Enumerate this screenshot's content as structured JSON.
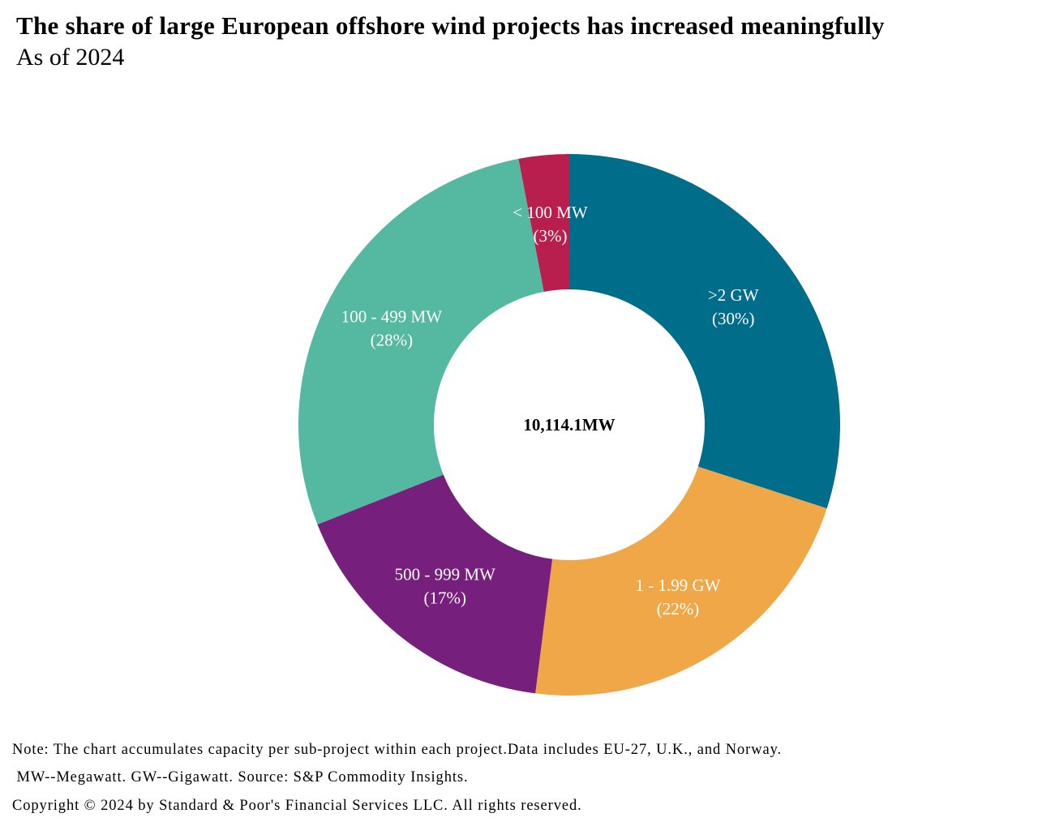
{
  "chart_data": {
    "type": "pie",
    "variant": "donut",
    "title": "The share of large European offshore wind projects has increased meaningfully",
    "subtitle": "As of 2024",
    "center_label": "10,114.1MW",
    "slices": [
      {
        "label": ">2 GW",
        "percent_label": "(30%)",
        "value": 30,
        "color": "#006d8a"
      },
      {
        "label": "1 - 1.99 GW",
        "percent_label": "(22%)",
        "value": 22,
        "color": "#f0a748"
      },
      {
        "label": "500 - 999 MW",
        "percent_label": "(17%)",
        "value": 17,
        "color": "#761f7c"
      },
      {
        "label": "100 - 499 MW",
        "percent_label": "(28%)",
        "value": 28,
        "color": "#54b9a0"
      },
      {
        "label": "< 100 MW",
        "percent_label": "(3%)",
        "value": 3,
        "color": "#b81f4f"
      }
    ],
    "start": "top",
    "direction": "clockwise",
    "legend": "none"
  },
  "notes": [
    "Note: The chart accumulates capacity per sub-project within each project.Data includes EU-27, U.K., and Norway.",
    " MW--Megawatt. GW--Gigawatt. Source: S&P Commodity Insights.",
    "Copyright © 2024 by Standard & Poor's Financial Services LLC. All rights reserved."
  ]
}
